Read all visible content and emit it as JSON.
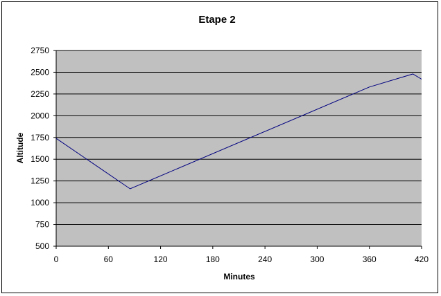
{
  "chart_data": {
    "type": "line",
    "title": "Etape 2",
    "xlabel": "Minutes",
    "ylabel": "Altitude",
    "xlim": [
      0,
      420
    ],
    "ylim": [
      500,
      2750
    ],
    "xticks": [
      0,
      60,
      120,
      180,
      240,
      300,
      360,
      420
    ],
    "yticks": [
      500,
      750,
      1000,
      1250,
      1500,
      1750,
      2000,
      2250,
      2500,
      2750
    ],
    "grid": "horizontal",
    "legend": "none",
    "series": [
      {
        "x": [
          0,
          85,
          360,
          410,
          420
        ],
        "y": [
          1740,
          1160,
          2330,
          2480,
          2420
        ]
      }
    ],
    "colors": {
      "plot_background": "#c0c0c0",
      "line": "#000080",
      "grid": "#000000"
    }
  }
}
